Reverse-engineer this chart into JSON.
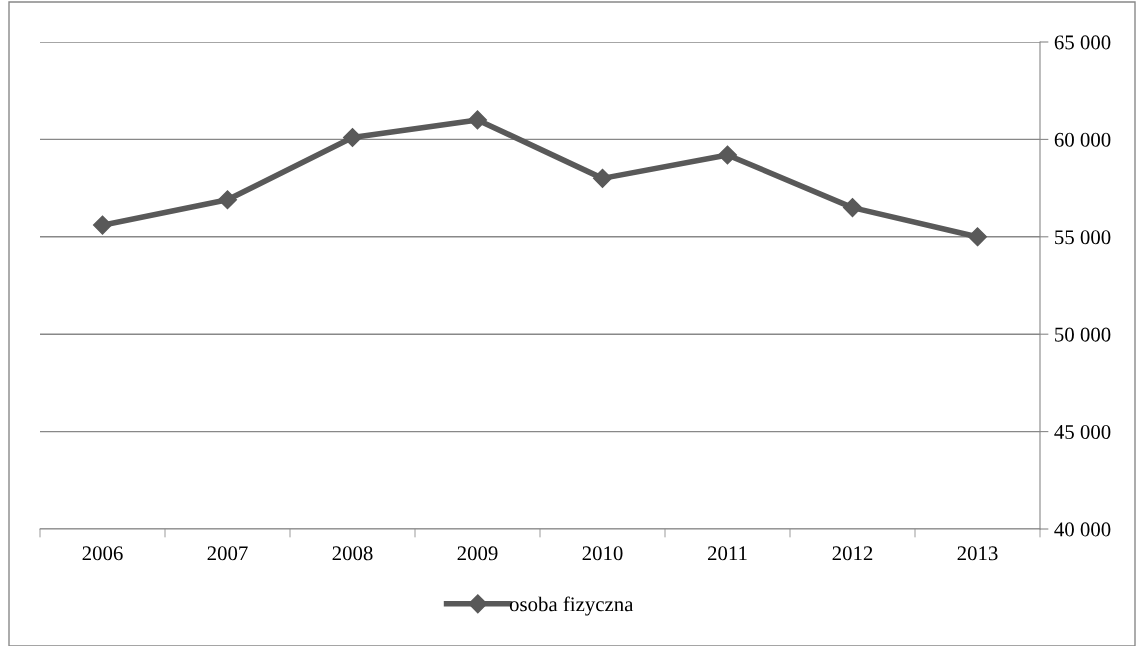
{
  "chart_data": {
    "type": "line",
    "categories": [
      "2006",
      "2007",
      "2008",
      "2009",
      "2010",
      "2011",
      "2012",
      "2013"
    ],
    "series": [
      {
        "name": "osoba fizyczna",
        "color": "#595959",
        "values": [
          55600,
          56900,
          60100,
          61000,
          58000,
          59200,
          56500,
          55000
        ]
      }
    ],
    "ylim": [
      40000,
      65000
    ],
    "yticks": [
      {
        "value": 40000,
        "label": "40 000"
      },
      {
        "value": 45000,
        "label": "45 000"
      },
      {
        "value": 50000,
        "label": "50 000"
      },
      {
        "value": 55000,
        "label": "55 000"
      },
      {
        "value": 60000,
        "label": "60 000"
      },
      {
        "value": 65000,
        "label": "65 000"
      }
    ],
    "grid": "y",
    "legend": "bottom",
    "marker": "diamond",
    "line_style": "solid"
  }
}
